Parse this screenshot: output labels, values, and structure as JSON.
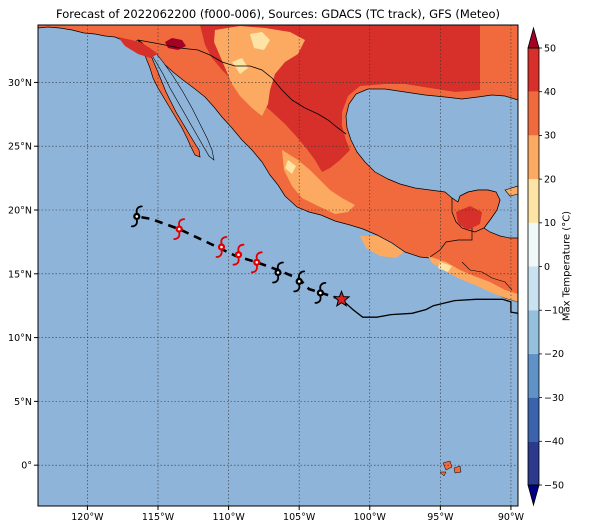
{
  "title": "Forecast of 2022062200 (f000-006), Sources: GDACS (TC track), GFS (Meteo)",
  "map": {
    "extent": {
      "lon_min": -123.5,
      "lon_max": -89.5,
      "lat_min": -3.2,
      "lat_max": 34.5
    },
    "x_ticks": [
      {
        "lon": -120,
        "label": "120°W"
      },
      {
        "lon": -115,
        "label": "115°W"
      },
      {
        "lon": -110,
        "label": "110°W"
      },
      {
        "lon": -105,
        "label": "105°W"
      },
      {
        "lon": -100,
        "label": "100°W"
      },
      {
        "lon": -95,
        "label": "95°W"
      },
      {
        "lon": -90,
        "label": "90°W"
      }
    ],
    "y_ticks": [
      {
        "lat": 30,
        "label": "30°N"
      },
      {
        "lat": 25,
        "label": "25°N"
      },
      {
        "lat": 20,
        "label": "20°N"
      },
      {
        "lat": 15,
        "label": "15°N"
      },
      {
        "lat": 10,
        "label": "10°N"
      },
      {
        "lat": 5,
        "label": "5°N"
      },
      {
        "lat": 0,
        "label": "0°"
      }
    ],
    "ocean_color": "#8fb4d9",
    "grid": true
  },
  "track": {
    "past": [
      [
        -89.5,
        11.9
      ],
      [
        -90.0,
        12.0
      ],
      [
        -90.0,
        12.8
      ],
      [
        -90.6,
        13.0
      ],
      [
        -92.5,
        13.0
      ],
      [
        -94.0,
        12.9
      ],
      [
        -95.5,
        12.5
      ],
      [
        -96.0,
        12.2
      ],
      [
        -97.0,
        11.9
      ],
      [
        -98.5,
        11.8
      ],
      [
        -99.5,
        11.6
      ],
      [
        -100.5,
        11.6
      ],
      [
        -101.2,
        12.2
      ],
      [
        -102.0,
        13.0
      ]
    ],
    "current": {
      "lon": -102.0,
      "lat": 13.0,
      "color": "#e02020"
    },
    "forecast": [
      [
        -102.0,
        13.0
      ],
      [
        -104.3,
        13.8
      ],
      [
        -105.0,
        14.6
      ],
      [
        -106.5,
        15.3
      ],
      [
        -108.0,
        15.9
      ],
      [
        -109.5,
        16.4
      ],
      [
        -111.0,
        17.2
      ],
      [
        -113.5,
        18.5
      ],
      [
        -115.5,
        19.3
      ],
      [
        -116.5,
        19.5
      ]
    ],
    "storm_symbols": [
      {
        "lon": -103.5,
        "lat": 13.5,
        "color": "#000000"
      },
      {
        "lon": -105.0,
        "lat": 14.4,
        "color": "#000000"
      },
      {
        "lon": -106.5,
        "lat": 15.1,
        "color": "#000000"
      },
      {
        "lon": -108.0,
        "lat": 15.9,
        "color": "#e00000"
      },
      {
        "lon": -109.3,
        "lat": 16.5,
        "color": "#e00000"
      },
      {
        "lon": -110.5,
        "lat": 17.1,
        "color": "#e00000"
      },
      {
        "lon": -113.5,
        "lat": 18.5,
        "color": "#e00000"
      },
      {
        "lon": -116.5,
        "lat": 19.5,
        "color": "#000000"
      }
    ]
  },
  "colorbar": {
    "label": "Max Temperature (°C)",
    "min": -50,
    "max": 50,
    "tick_labels": [
      "50",
      "40",
      "30",
      "20",
      "10",
      "0",
      "−10",
      "−20",
      "−30",
      "−40",
      "−50"
    ],
    "bands": [
      {
        "from": -50,
        "to": -40,
        "color": "#2b3a8c"
      },
      {
        "from": -40,
        "to": -30,
        "color": "#3b63ad"
      },
      {
        "from": -30,
        "to": -20,
        "color": "#5f93c7"
      },
      {
        "from": -20,
        "to": -10,
        "color": "#94c0dd"
      },
      {
        "from": -10,
        "to": 0,
        "color": "#c8e2ef"
      },
      {
        "from": 0,
        "to": 10,
        "color": "#f0f8f8"
      },
      {
        "from": 10,
        "to": 20,
        "color": "#fee4a4"
      },
      {
        "from": 20,
        "to": 30,
        "color": "#fcaa62"
      },
      {
        "from": 30,
        "to": 40,
        "color": "#f06a3e"
      },
      {
        "from": 40,
        "to": 50,
        "color": "#d7302a"
      },
      {
        "from": 50,
        "to": 55,
        "color": "#a50026"
      }
    ]
  }
}
